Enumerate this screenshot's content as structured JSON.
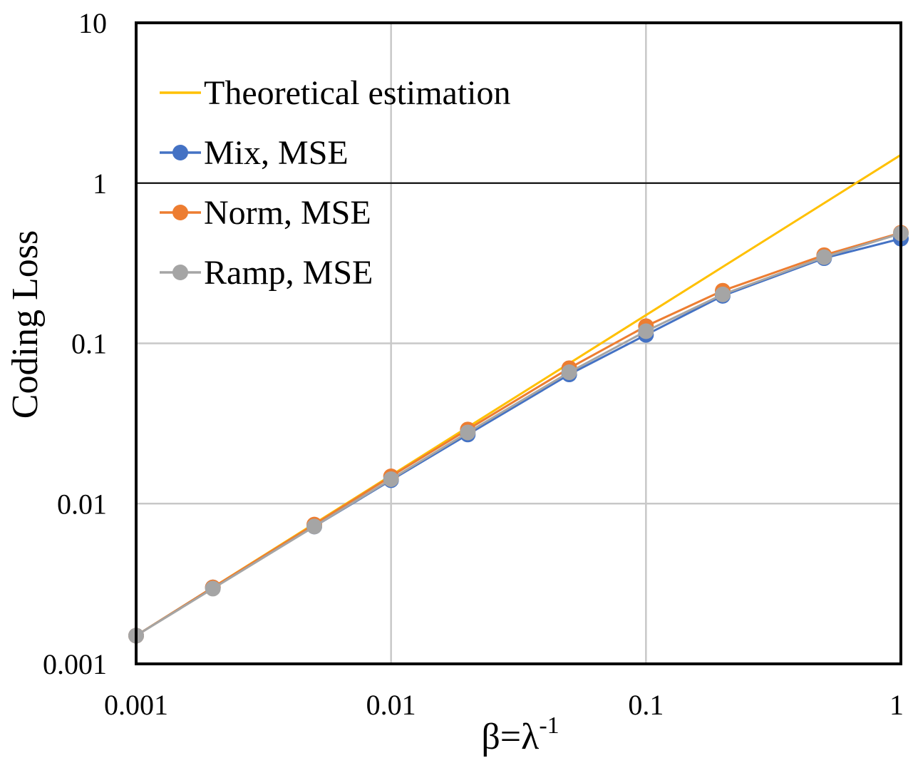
{
  "chart_data": {
    "type": "line",
    "xscale": "log",
    "yscale": "log",
    "title": "",
    "xlabel": "β=λ",
    "xlabel_sup": "-1",
    "ylabel": "Coding Loss",
    "xlim": [
      0.001,
      1
    ],
    "ylim": [
      0.001,
      10
    ],
    "x_ticks": [
      {
        "value": 0.001,
        "label": "0.001"
      },
      {
        "value": 0.01,
        "label": "0.01"
      },
      {
        "value": 0.1,
        "label": "0.1"
      },
      {
        "value": 1,
        "label": "1"
      }
    ],
    "y_ticks": [
      {
        "value": 0.001,
        "label": "0.001"
      },
      {
        "value": 0.01,
        "label": "0.01"
      },
      {
        "value": 0.1,
        "label": "0.1"
      },
      {
        "value": 1,
        "label": "1"
      },
      {
        "value": 10,
        "label": "10"
      }
    ],
    "grid": true,
    "reference_line": {
      "y": 1,
      "color": "#000000"
    },
    "legend_position": "top-left",
    "series": [
      {
        "name": "Theoretical estimation",
        "color": "#FFC000",
        "markers": false,
        "x": [
          0.001,
          1
        ],
        "y": [
          0.0015,
          1.5
        ]
      },
      {
        "name": "Mix, MSE",
        "color": "#4472C4",
        "markers": true,
        "x": [
          0.001,
          0.002,
          0.005,
          0.01,
          0.02,
          0.05,
          0.1,
          0.2,
          0.5,
          1
        ],
        "y": [
          0.0015,
          0.003,
          0.0072,
          0.014,
          0.027,
          0.064,
          0.113,
          0.198,
          0.34,
          0.45
        ]
      },
      {
        "name": "Norm, MSE",
        "color": "#ED7D31",
        "markers": true,
        "x": [
          0.001,
          0.002,
          0.005,
          0.01,
          0.02,
          0.05,
          0.1,
          0.2,
          0.5,
          1
        ],
        "y": [
          0.0015,
          0.003,
          0.0074,
          0.0148,
          0.029,
          0.07,
          0.128,
          0.213,
          0.355,
          0.49
        ]
      },
      {
        "name": "Ramp, MSE",
        "color": "#A5A5A5",
        "markers": true,
        "x": [
          0.001,
          0.002,
          0.005,
          0.01,
          0.02,
          0.05,
          0.1,
          0.2,
          0.5,
          1
        ],
        "y": [
          0.0015,
          0.00295,
          0.0072,
          0.0142,
          0.0278,
          0.066,
          0.119,
          0.202,
          0.345,
          0.485
        ]
      }
    ]
  }
}
